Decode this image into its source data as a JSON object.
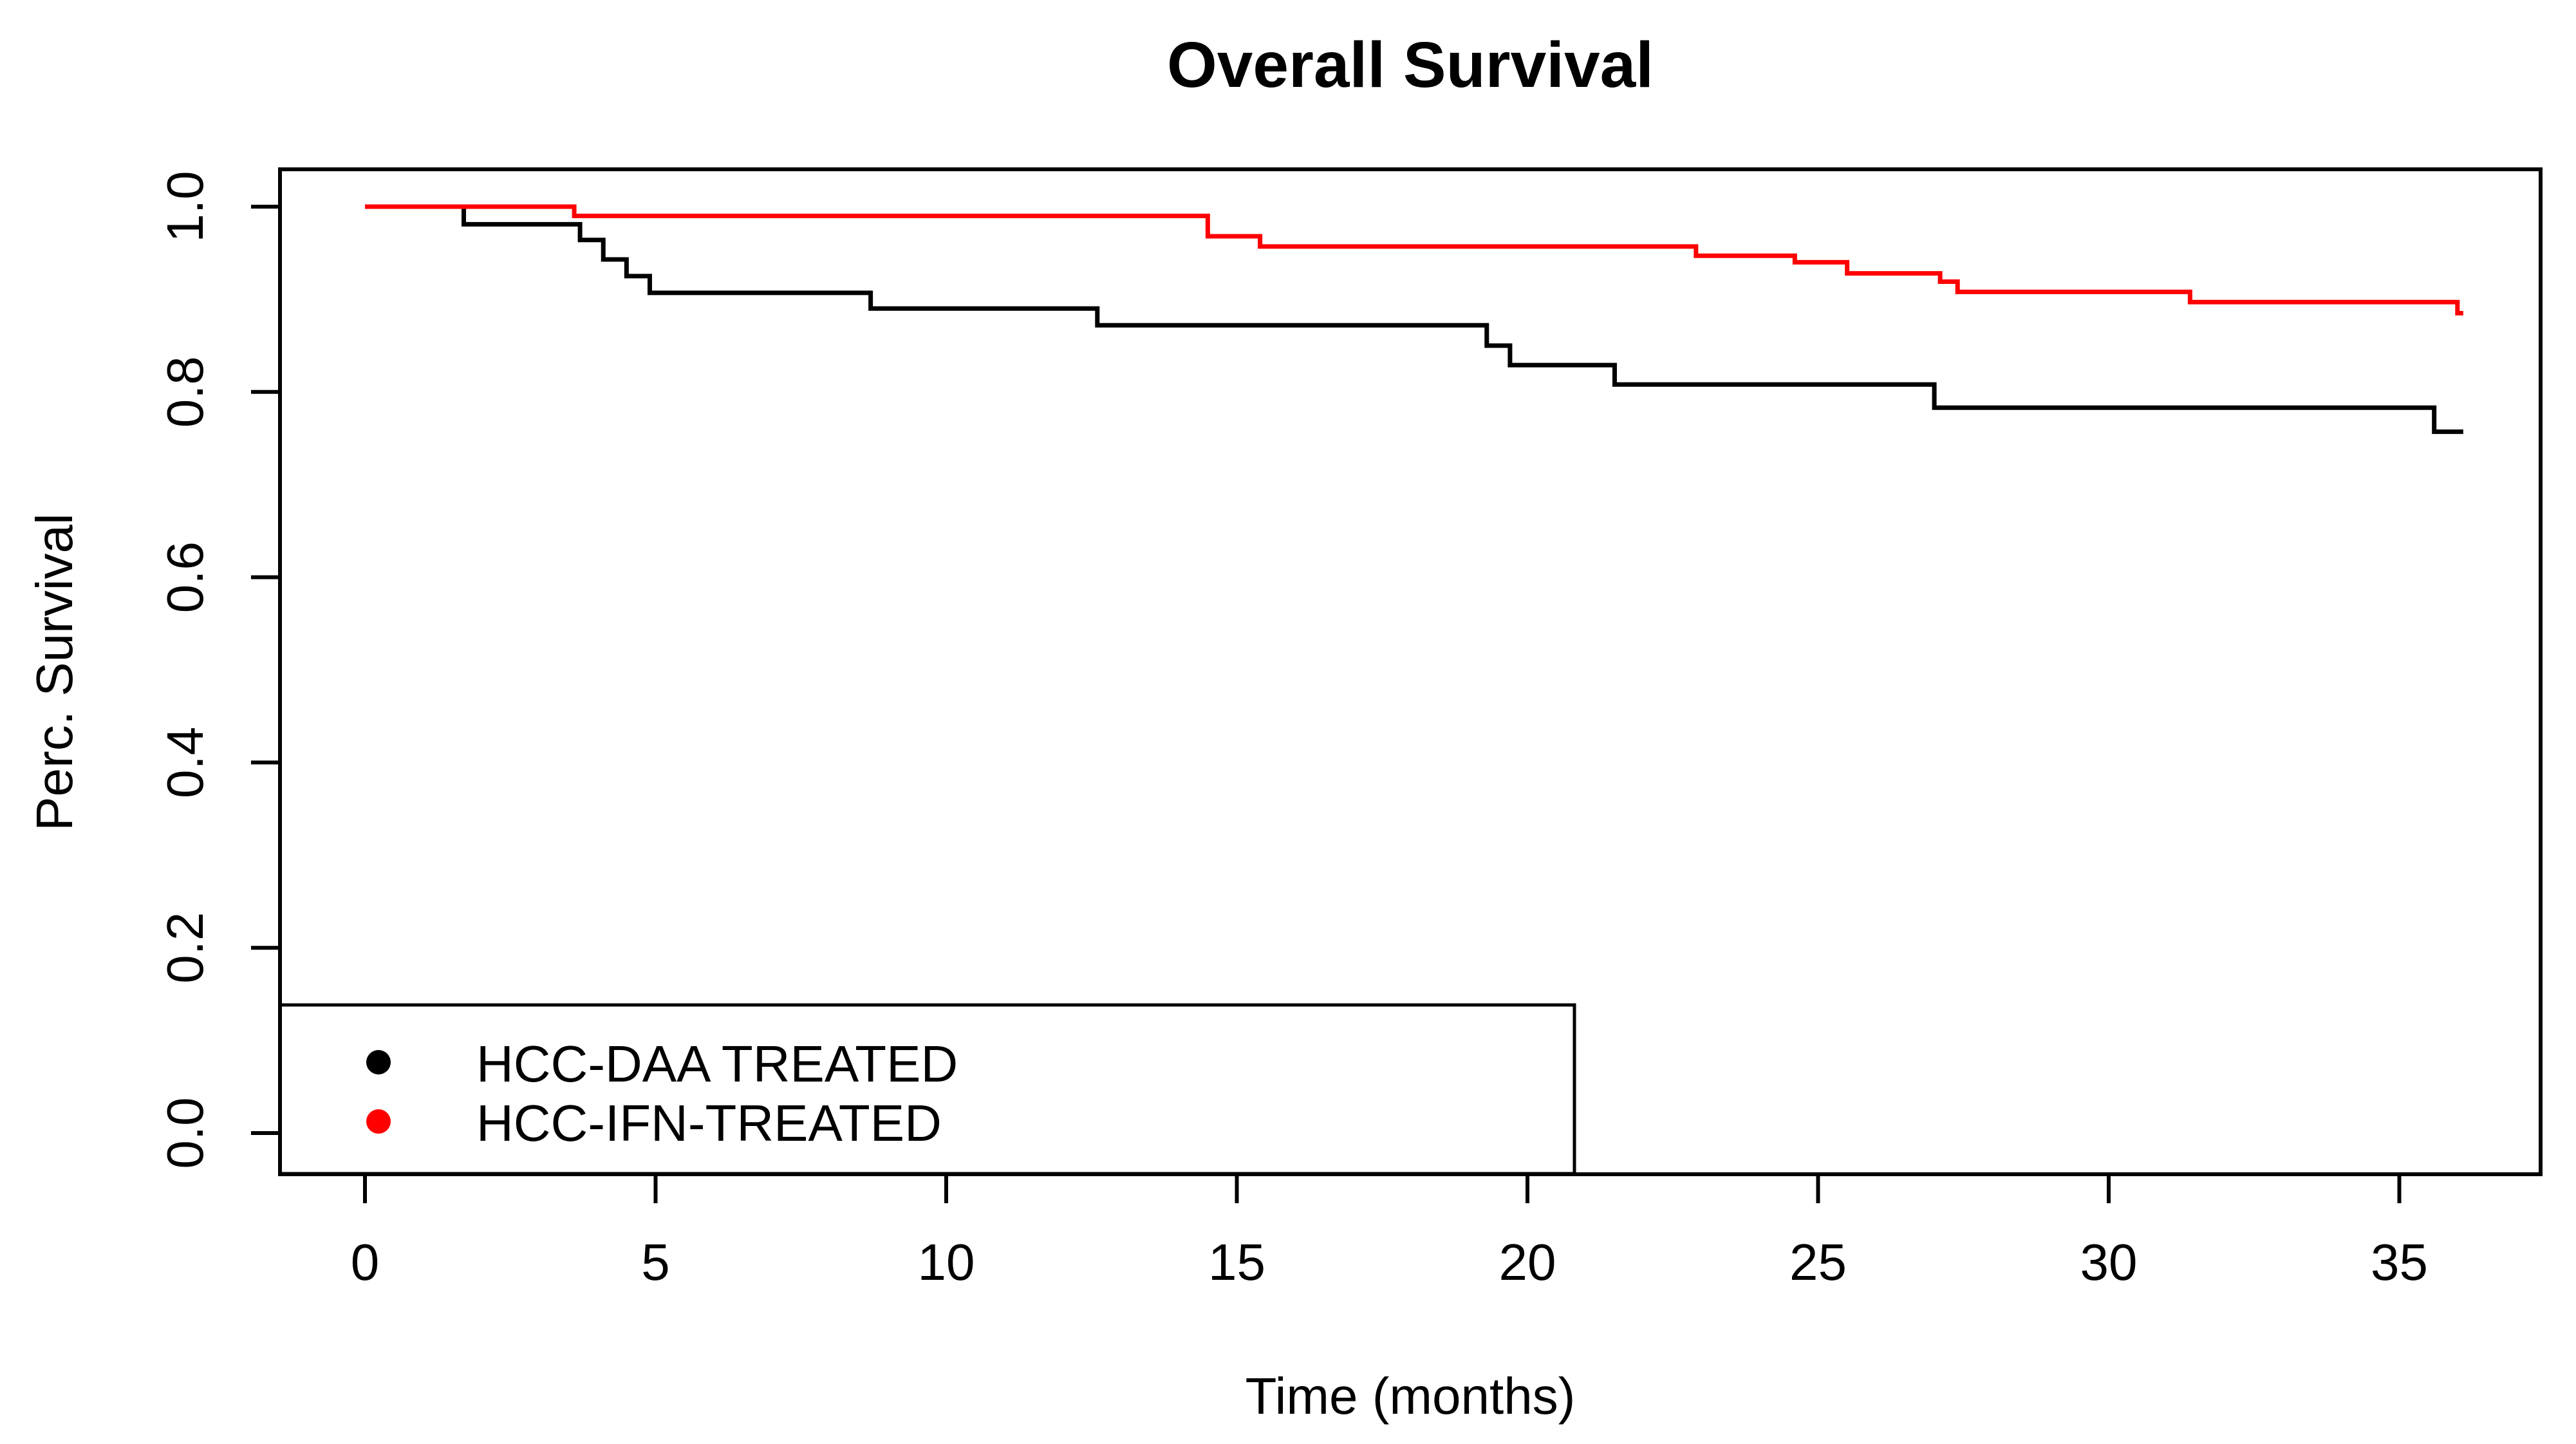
{
  "title": "Overall Survival",
  "chart_data": {
    "type": "line",
    "subtype": "kaplan-meier-step",
    "title": "Overall Survival",
    "xlabel": "Time (months)",
    "ylabel": "Perc. Survival",
    "xlim": [
      -1.44,
      37.44
    ],
    "ylim": [
      -0.04,
      1.04
    ],
    "x_ticks": [
      0,
      5,
      10,
      15,
      20,
      25,
      30,
      35
    ],
    "y_ticks": [
      0.0,
      0.2,
      0.4,
      0.6,
      0.8,
      1.0
    ],
    "grid": false,
    "legend_position": "bottom-left",
    "frame_color": "#000000",
    "series": [
      {
        "name": "HCC-DAA TREATED",
        "color": "#000000",
        "end_time": 36.1,
        "steps": [
          [
            0,
            1.0
          ],
          [
            1.7,
            0.981
          ],
          [
            3.7,
            0.964
          ],
          [
            4.1,
            0.943
          ],
          [
            4.5,
            0.925
          ],
          [
            4.9,
            0.907
          ],
          [
            8.7,
            0.89
          ],
          [
            12.6,
            0.872
          ],
          [
            19.3,
            0.85
          ],
          [
            19.7,
            0.829
          ],
          [
            21.5,
            0.808
          ],
          [
            27.0,
            0.783
          ],
          [
            35.6,
            0.757
          ]
        ]
      },
      {
        "name": "HCC-IFN-TREATED",
        "color": "#FF0000",
        "end_time": 36.1,
        "steps": [
          [
            0,
            1.0
          ],
          [
            3.6,
            0.99
          ],
          [
            14.5,
            0.968
          ],
          [
            15.4,
            0.957
          ],
          [
            22.9,
            0.947
          ],
          [
            24.6,
            0.94
          ],
          [
            25.5,
            0.928
          ],
          [
            27.1,
            0.919
          ],
          [
            27.4,
            0.908
          ],
          [
            31.4,
            0.897
          ],
          [
            36.0,
            0.885
          ]
        ]
      }
    ]
  }
}
